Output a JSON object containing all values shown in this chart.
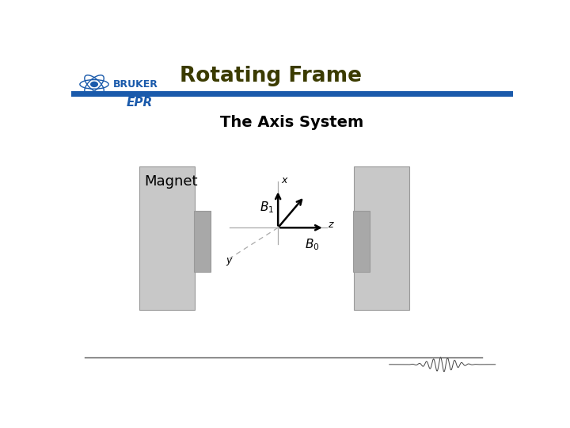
{
  "title": "Rotating Frame",
  "subtitle": "The Axis System",
  "bg_color": "#ffffff",
  "title_color": "#3b3b00",
  "subtitle_color": "#000000",
  "header_bar_color": "#1a5aab",
  "magnet_face_color": "#c8c8c8",
  "magnet_edge_color": "#999999",
  "pole_face_color": "#a8a8a8",
  "pole_edge_color": "#999999",
  "axis_color": "#aaaaaa",
  "arrow_color": "#000000",
  "magnet_label": "Magnet",
  "footer_line_color": "#555555",
  "bruker_color": "#1a5aab",
  "epr_color": "#1a5aab"
}
